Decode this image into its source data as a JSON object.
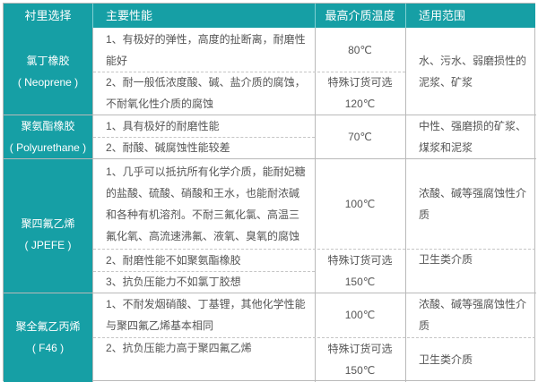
{
  "header": {
    "col1": "衬里选择",
    "col2": "主要性能",
    "col3": "最高介质温度",
    "col4": "适用范围"
  },
  "colors": {
    "header_bg": "#169fa5",
    "text": "#555555",
    "border": "#b9b9b9"
  },
  "rows": [
    {
      "name": "氯丁橡胶",
      "name_en": "( Neoprene )",
      "perf": [
        [
          "1、有极好的弹性，高度的扯断离，耐磨性",
          "能好"
        ],
        [
          "2、耐一般低浓度酸、碱、盐介质的腐蚀，",
          "不耐氧化性介质的腐蚀"
        ]
      ],
      "temp": [
        "80℃",
        "特殊订货可选",
        "120℃"
      ],
      "use": [
        "水、污水、弱磨损性的",
        "泥浆、矿浆"
      ]
    },
    {
      "name": "聚氨酯橡胶",
      "name_en": "( Polyurethane )",
      "perf": [
        "1、具有极好的耐磨性能",
        "2、耐酸、碱腐蚀性能较差"
      ],
      "temp": "70℃",
      "use": [
        "中性、强磨损的矿浆、",
        "煤浆和泥浆"
      ]
    },
    {
      "name": "聚四氟乙烯",
      "name_en": "( JPEFE )",
      "perf": [
        [
          "1、几乎可以抵抗所有化学介质，能耐妃糖",
          "的盐酸、硫酸、硝酸和王水，也能耐浓碱",
          "和各种有机溶剂。不耐三氟化氯、高温三",
          "氟化氧、高流速沸氟、液氧、臭氧的腐蚀"
        ],
        "2、耐磨性能不如聚氨酯橡胶",
        "3、抗负压能力不如氯丁胶想"
      ],
      "temp": [
        "100℃",
        "特殊订货可选",
        "150℃"
      ],
      "use": [
        [
          "浓酸、碱等强腐蚀性介",
          "质"
        ],
        "卫生类介质"
      ]
    },
    {
      "name": "聚全氟乙丙烯",
      "name_en": "( F46 )",
      "perf": [
        [
          "1、不耐发烟硝酸、丁基锂，其他化学性能",
          "与聚四氟乙烯基本相同"
        ],
        "2、抗负压能力高于聚四氟乙烯"
      ],
      "temp": [
        "100℃",
        "特殊订货可选",
        "150℃"
      ],
      "use": [
        [
          "浓酸、碱等强腐蚀性介",
          "质"
        ],
        "卫生类介质"
      ]
    }
  ]
}
